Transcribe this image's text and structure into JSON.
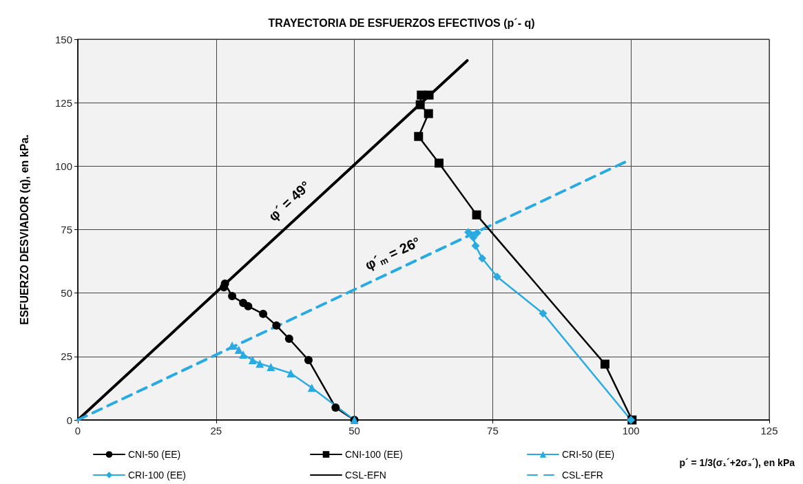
{
  "chart_data": {
    "type": "line",
    "title": "TRAYECTORIA DE ESFUERZOS EFECTIVOS (p´- q)",
    "xlabel": "p´ = 1/3(σ₁´+2σ₃´), en kPa",
    "ylabel": "ESFUERZO DESVIADOR (q), en kPa.",
    "xlim": [
      0,
      125
    ],
    "xticks": [
      0,
      25,
      50,
      75,
      100,
      125
    ],
    "ylim": [
      0,
      150
    ],
    "yticks": [
      0,
      25,
      50,
      75,
      100,
      125,
      150
    ],
    "grid": true,
    "legend": "bottom",
    "series": [
      {
        "name": "CNI-50 (EE)",
        "color": "#000000",
        "marker": "circle",
        "line_style": "solid",
        "x": [
          50,
          46.6,
          41.7,
          38.2,
          35.9,
          33.5,
          30.8,
          29.9,
          27.9,
          26.6,
          26.4
        ],
        "values": [
          0,
          4.9,
          23.6,
          32,
          37.2,
          41.8,
          44.8,
          46.1,
          48.8,
          53.7,
          52.3
        ]
      },
      {
        "name": "CNI-100 (EE)",
        "color": "#000000",
        "marker": "square",
        "line_style": "solid",
        "x": [
          100.2,
          95.3,
          72.1,
          65.3,
          61.6,
          63.4,
          61.9,
          62.1,
          63.5
        ],
        "values": [
          0,
          22,
          80.8,
          101.2,
          111.7,
          120.7,
          124.2,
          128,
          128
        ]
      },
      {
        "name": "CRI-50 (EE)",
        "color": "#29abe2",
        "marker": "triangle",
        "line_style": "solid",
        "x": [
          50,
          42.3,
          38.5,
          34.9,
          32.9,
          31.6,
          29.9,
          29.1,
          27.9
        ],
        "values": [
          0,
          12.7,
          18.4,
          20.9,
          22.2,
          23.6,
          25.8,
          27.7,
          29.3
        ]
      },
      {
        "name": "CRI-100 (EE)",
        "color": "#29abe2",
        "marker": "diamond",
        "line_style": "solid",
        "x": [
          100,
          84.1,
          75.8,
          73.1,
          71.9,
          71.5,
          72.2,
          70.6
        ],
        "values": [
          0,
          42,
          56.4,
          63.7,
          68.6,
          71.9,
          73.7,
          74
        ]
      },
      {
        "name": "CSL-EFN",
        "color": "#000000",
        "marker": "none",
        "line_style": "solid",
        "x": [
          0,
          70.4
        ],
        "values": [
          0,
          141.6
        ]
      },
      {
        "name": "CSL-EFR",
        "color": "#29abe2",
        "marker": "none",
        "line_style": "dashed",
        "x": [
          0,
          99.3
        ],
        "values": [
          0,
          102
        ]
      }
    ],
    "annotations": [
      "φ´ = 49°",
      "φ´$_{m}$ = 26°"
    ]
  }
}
